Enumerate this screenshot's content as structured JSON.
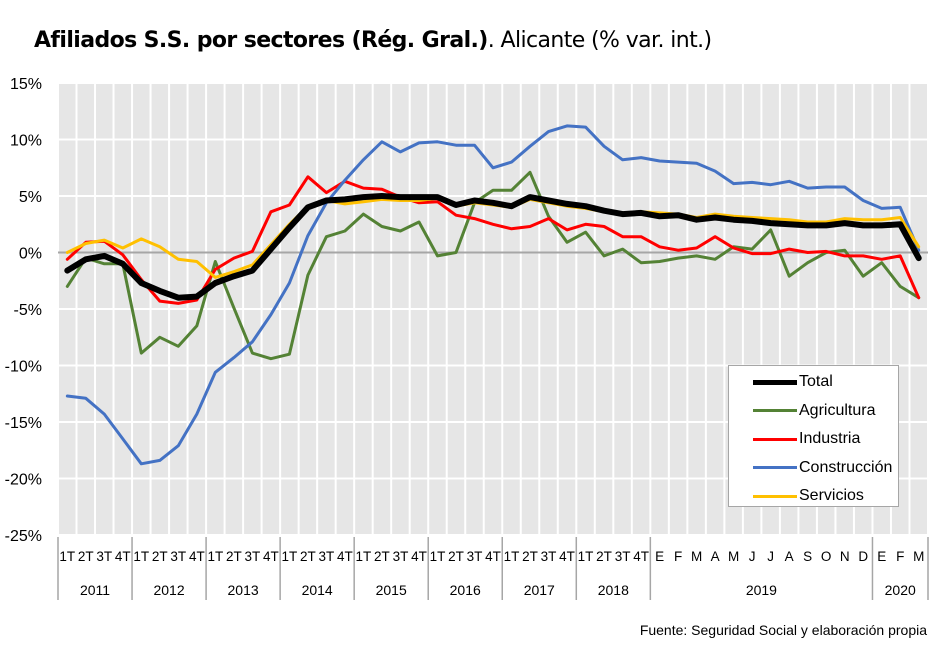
{
  "chart_data": {
    "type": "line",
    "title_bold": "Afiliados S.S. por sectores (Rég. Gral.)",
    "title_rest": ". Alicante (% var. int.)",
    "xlabel": "",
    "ylabel": "",
    "ylim": [
      -25,
      15
    ],
    "yticks": [
      15,
      10,
      5,
      0,
      -5,
      -10,
      -15,
      -20,
      -25
    ],
    "ytick_labels": [
      "15%",
      "10%",
      "5%",
      "0%",
      "-5%",
      "-10%",
      "-15%",
      "-20%",
      "-25%"
    ],
    "grid": "vertical and horizontal, white on light grey",
    "legend_position": "bottom-right",
    "categories": [
      "1T",
      "2T",
      "3T",
      "4T",
      "1T",
      "2T",
      "3T",
      "4T",
      "1T",
      "2T",
      "3T",
      "4T",
      "1T",
      "2T",
      "3T",
      "4T",
      "1T",
      "2T",
      "3T",
      "4T",
      "1T",
      "2T",
      "3T",
      "4T",
      "1T",
      "2T",
      "3T",
      "4T",
      "1T",
      "2T",
      "3T",
      "4T",
      "E",
      "F",
      "M",
      "A",
      "M",
      "J",
      "J",
      "A",
      "S",
      "O",
      "N",
      "D",
      "E",
      "F",
      "M"
    ],
    "year_groups": [
      {
        "label": "2011",
        "count": 4
      },
      {
        "label": "2012",
        "count": 4
      },
      {
        "label": "2013",
        "count": 4
      },
      {
        "label": "2014",
        "count": 4
      },
      {
        "label": "2015",
        "count": 4
      },
      {
        "label": "2016",
        "count": 4
      },
      {
        "label": "2017",
        "count": 4
      },
      {
        "label": "2018",
        "count": 4
      },
      {
        "label": "2019",
        "count": 12
      },
      {
        "label": "2020",
        "count": 3
      }
    ],
    "series": [
      {
        "name": "Agricultura",
        "color": "#548235",
        "width": 3,
        "values": [
          -3.0,
          -0.5,
          -1.0,
          -1.0,
          -8.9,
          -7.5,
          -8.3,
          -6.5,
          -0.8,
          -4.9,
          -8.9,
          -9.4,
          -9.0,
          -2.0,
          1.4,
          1.9,
          3.4,
          2.3,
          1.9,
          2.7,
          -0.3,
          0.0,
          4.4,
          5.5,
          5.5,
          7.1,
          3.2,
          0.9,
          1.8,
          -0.3,
          0.3,
          -0.9,
          -0.8,
          -0.5,
          -0.3,
          -0.6,
          0.5,
          0.3,
          2.0,
          -2.1,
          -0.9,
          0.0,
          0.2,
          -2.1,
          -0.9,
          -3.0,
          -4.0
        ]
      },
      {
        "name": "Industria",
        "color": "#ff0000",
        "width": 3,
        "values": [
          -0.6,
          0.9,
          1.0,
          -0.2,
          -2.4,
          -4.3,
          -4.5,
          -4.2,
          -1.5,
          -0.5,
          0.1,
          3.6,
          4.2,
          6.7,
          5.3,
          6.3,
          5.7,
          5.6,
          4.9,
          4.4,
          4.5,
          3.3,
          3.0,
          2.5,
          2.1,
          2.3,
          3.0,
          2.0,
          2.5,
          2.3,
          1.4,
          1.4,
          0.5,
          0.2,
          0.4,
          1.4,
          0.4,
          -0.1,
          -0.1,
          0.3,
          0.0,
          0.1,
          -0.3,
          -0.3,
          -0.6,
          -0.3,
          -4.0
        ]
      },
      {
        "name": "Construcción",
        "color": "#4472c4",
        "width": 3,
        "values": [
          -12.7,
          -12.9,
          -14.3,
          -16.5,
          -18.7,
          -18.4,
          -17.1,
          -14.3,
          -10.6,
          -9.3,
          -7.9,
          -5.5,
          -2.7,
          1.5,
          4.4,
          6.4,
          8.2,
          9.8,
          8.9,
          9.7,
          9.8,
          9.5,
          9.5,
          7.5,
          8.0,
          9.4,
          10.7,
          11.2,
          11.1,
          9.4,
          8.2,
          8.4,
          8.1,
          8.0,
          7.9,
          7.2,
          6.1,
          6.2,
          6.0,
          6.3,
          5.7,
          5.8,
          5.8,
          4.6,
          3.9,
          4.0,
          0.2
        ]
      },
      {
        "name": "Servicios",
        "color": "#ffc000",
        "width": 3,
        "values": [
          0.0,
          0.8,
          1.1,
          0.4,
          1.2,
          0.5,
          -0.6,
          -0.8,
          -2.2,
          -1.7,
          -1.1,
          0.7,
          2.5,
          4.1,
          4.6,
          4.3,
          4.5,
          4.7,
          4.6,
          4.6,
          4.8,
          4.1,
          4.4,
          4.2,
          4.0,
          4.7,
          4.4,
          4.1,
          3.9,
          3.6,
          3.5,
          3.6,
          3.5,
          3.4,
          3.1,
          3.4,
          3.2,
          3.1,
          3.0,
          2.9,
          2.7,
          2.7,
          3.0,
          2.9,
          2.9,
          3.1,
          0.5
        ]
      },
      {
        "name": "Total",
        "color": "#000000",
        "width": 6,
        "values": [
          -1.6,
          -0.6,
          -0.3,
          -1.0,
          -2.7,
          -3.4,
          -4.0,
          -3.9,
          -2.7,
          -2.1,
          -1.6,
          0.3,
          2.2,
          4.0,
          4.6,
          4.7,
          4.9,
          5.0,
          4.9,
          4.9,
          4.9,
          4.2,
          4.6,
          4.4,
          4.1,
          4.9,
          4.6,
          4.3,
          4.1,
          3.7,
          3.4,
          3.5,
          3.2,
          3.3,
          2.9,
          3.1,
          2.9,
          2.8,
          2.6,
          2.5,
          2.4,
          2.4,
          2.6,
          2.4,
          2.4,
          2.5,
          -0.5
        ]
      }
    ],
    "legend_order": [
      "Total",
      "Agricultura",
      "Industria",
      "Construcción",
      "Servicios"
    ]
  },
  "colors": {
    "plot_background": "#e6e6e6",
    "gridline": "#ffffff",
    "zero_line": "#a6a6a6",
    "axis_separator": "#a6a6a6"
  },
  "legend": {
    "items": [
      {
        "label": "Total",
        "color": "#000000"
      },
      {
        "label": "Agricultura",
        "color": "#548235"
      },
      {
        "label": "Industria",
        "color": "#ff0000"
      },
      {
        "label": "Construcción",
        "color": "#4472c4"
      },
      {
        "label": "Servicios",
        "color": "#ffc000"
      }
    ]
  },
  "source": "Fuente: Seguridad Social y elaboración propia"
}
